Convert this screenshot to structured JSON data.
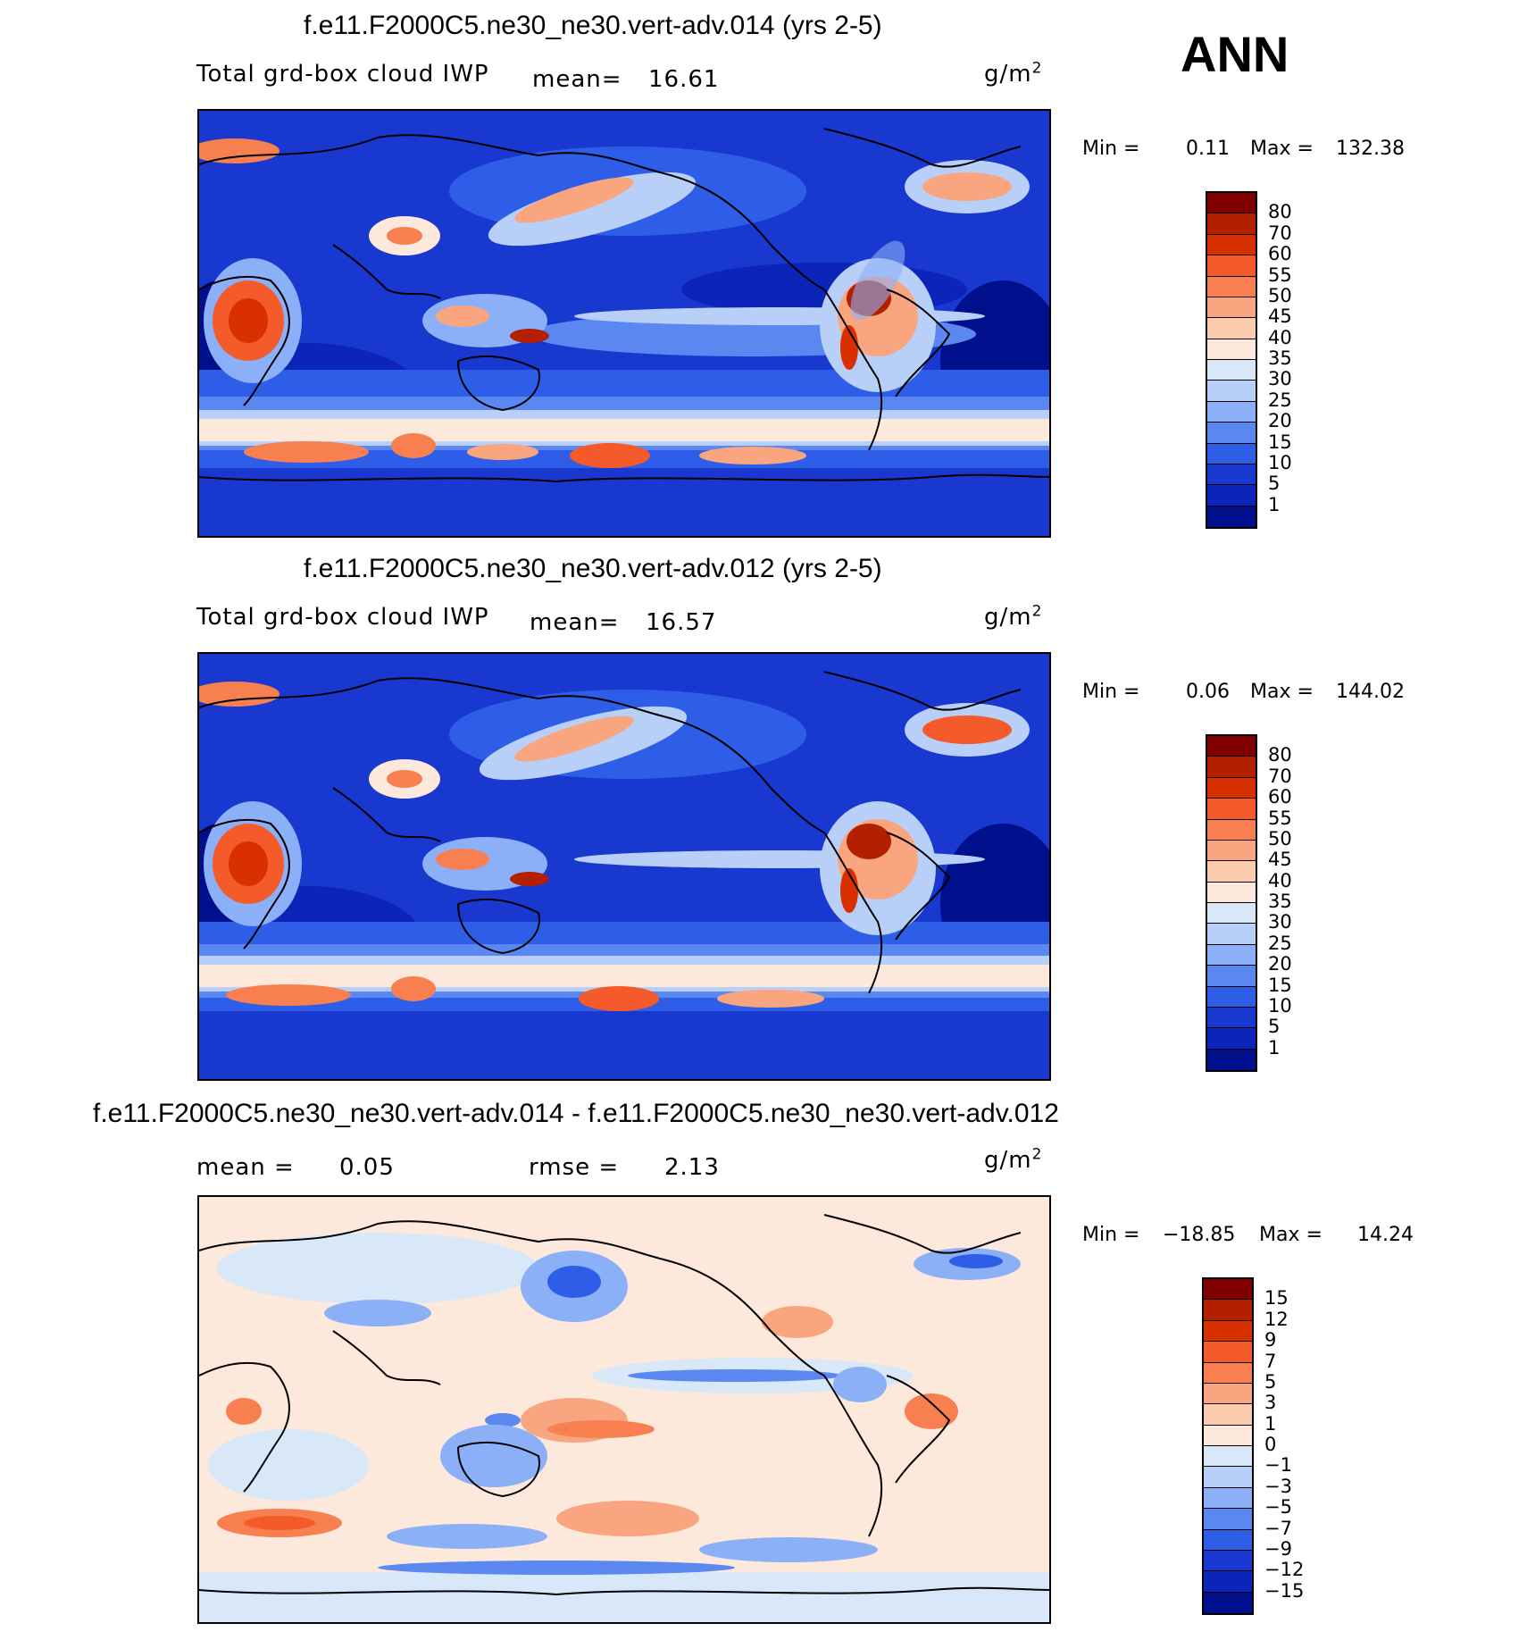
{
  "season": "ANN",
  "panels": [
    {
      "title": "f.e11.F2000C5.ne30_ne30.vert-adv.014 (yrs 2-5)",
      "variable": "Total grd-box cloud IWP",
      "mean_label": "mean=",
      "mean_value": "16.61",
      "units": "g/m",
      "units_sup": "2",
      "min_label": "Min =",
      "min_value": "0.11",
      "max_label": "Max =",
      "max_value": "132.38",
      "levels": [
        "80",
        "70",
        "60",
        "55",
        "50",
        "45",
        "40",
        "35",
        "30",
        "25",
        "20",
        "15",
        "10",
        "5",
        "1"
      ]
    },
    {
      "title": "f.e11.F2000C5.ne30_ne30.vert-adv.012 (yrs 2-5)",
      "variable": "Total grd-box cloud IWP",
      "mean_label": "mean=",
      "mean_value": "16.57",
      "units": "g/m",
      "units_sup": "2",
      "min_label": "Min =",
      "min_value": "0.06",
      "max_label": "Max =",
      "max_value": "144.02",
      "levels": [
        "80",
        "70",
        "60",
        "55",
        "50",
        "45",
        "40",
        "35",
        "30",
        "25",
        "20",
        "15",
        "10",
        "5",
        "1"
      ]
    },
    {
      "title": "f.e11.F2000C5.ne30_ne30.vert-adv.014 - f.e11.F2000C5.ne30_ne30.vert-adv.012",
      "mean_label": "mean =",
      "mean_value": "0.05",
      "rmse_label": "rmse =",
      "rmse_value": "2.13",
      "units": "g/m",
      "units_sup": "2",
      "min_label": "Min =",
      "min_value": "−18.85",
      "max_label": "Max =",
      "max_value": "14.24",
      "levels": [
        "15",
        "12",
        "9",
        "7",
        "5",
        "3",
        "1",
        "0",
        "−1",
        "−3",
        "−5",
        "−7",
        "−9",
        "−12",
        "−15"
      ]
    }
  ],
  "colors": {
    "abs_scale": [
      "#800000",
      "#b22000",
      "#d93000",
      "#f55a2a",
      "#f88050",
      "#f9a580",
      "#fbcbb0",
      "#fde9dc",
      "#d8e8f8",
      "#b8d0f8",
      "#8cb0f8",
      "#5a88f0",
      "#2e5ee8",
      "#1838d0",
      "#0c24b8",
      "#00108c"
    ],
    "diff_scale": [
      "#800000",
      "#b22000",
      "#d93000",
      "#f55a2a",
      "#f88050",
      "#f9a580",
      "#fbcbb0",
      "#fde9dc",
      "#d8e8f8",
      "#b8d0f8",
      "#8cb0f8",
      "#5a88f0",
      "#2e5ee8",
      "#1838d0",
      "#0c24b8",
      "#00108c"
    ]
  }
}
